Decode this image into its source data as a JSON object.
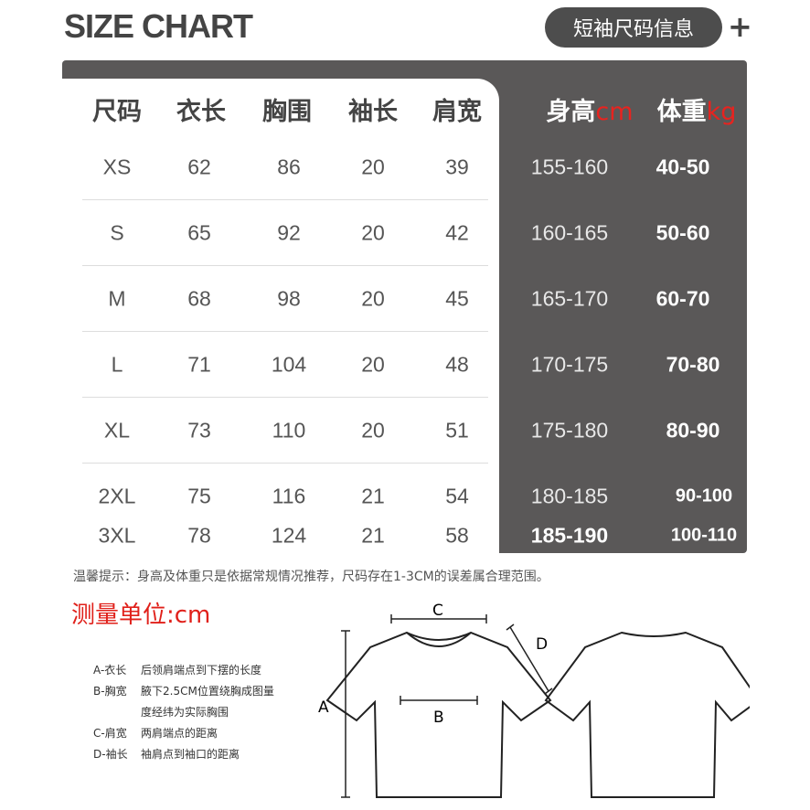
{
  "title": "SIZE CHART",
  "badge": "短袖尺码信息",
  "plus": "+",
  "headers": {
    "size": "尺码",
    "length": "衣长",
    "chest": "胸围",
    "sleeve": "袖长",
    "shoulder": "肩宽",
    "height": "身高",
    "height_unit": "cm",
    "weight": "体重",
    "weight_unit": "kg"
  },
  "rows": [
    [
      "XS",
      "62",
      "86",
      "20",
      "39",
      "155-160",
      "40-50"
    ],
    [
      "S",
      "65",
      "92",
      "20",
      "42",
      "160-165",
      "50-60"
    ],
    [
      "M",
      "68",
      "98",
      "20",
      "45",
      "165-170",
      "60-70"
    ],
    [
      "L",
      "71",
      "104",
      "20",
      "48",
      "170-175",
      "70-80"
    ],
    [
      "XL",
      "73",
      "110",
      "20",
      "51",
      "175-180",
      "80-90"
    ],
    [
      "2XL",
      "75",
      "116",
      "21",
      "54",
      "180-185",
      "90-100"
    ],
    [
      "3XL",
      "78",
      "124",
      "21",
      "58",
      "185-190",
      "100-110"
    ]
  ],
  "note": "温馨提示：身高及体重只是依据常规情况推荐，尺码存在1-3CM的误差属合理范围。",
  "unit": "测量单位:cm",
  "legend": [
    [
      "A-衣长",
      "后领肩端点到下摆的长度"
    ],
    [
      "B-胸宽",
      "腋下2.5CM位置绕胸成图量"
    ],
    [
      "",
      "度经纬为实际胸围"
    ],
    [
      "C-肩宽",
      "两肩端点的距离"
    ],
    [
      "D-袖长",
      "袖肩点到袖口的距离"
    ]
  ],
  "diagram": {
    "a": "A",
    "b": "B",
    "c": "C",
    "d": "D"
  },
  "colors": {
    "panel": "#5a5858",
    "accent": "#e8231f"
  }
}
